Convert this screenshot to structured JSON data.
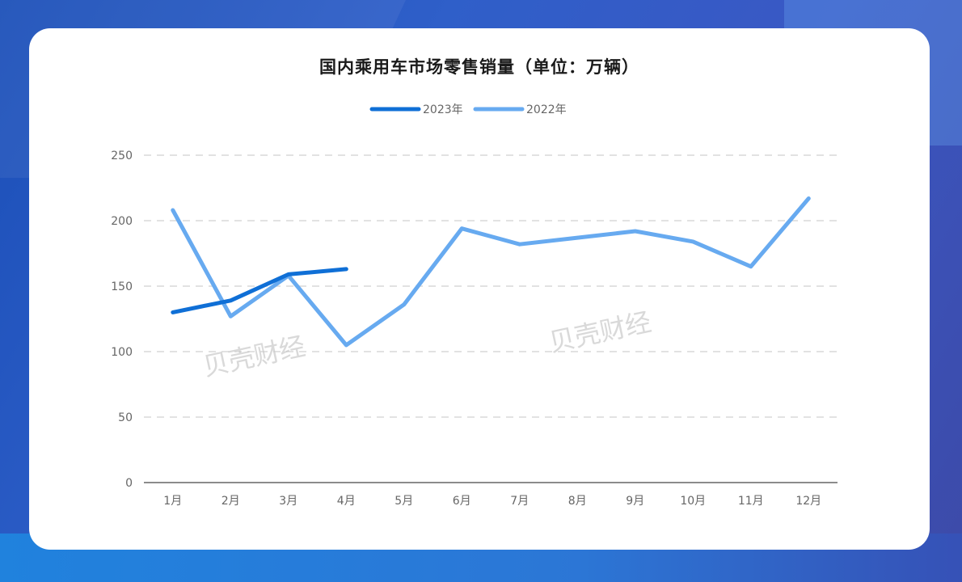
{
  "chart_data": {
    "type": "line",
    "title": "国内乘用车市场零售销量（单位：万辆）",
    "categories": [
      "1月",
      "2月",
      "3月",
      "4月",
      "5月",
      "6月",
      "7月",
      "8月",
      "9月",
      "10月",
      "11月",
      "12月"
    ],
    "series": [
      {
        "name": "2023年",
        "color": "#0f6fd6",
        "values": [
          130,
          139,
          159,
          163,
          null,
          null,
          null,
          null,
          null,
          null,
          null,
          null
        ]
      },
      {
        "name": "2022年",
        "color": "#67aaf0",
        "values": [
          208,
          127,
          158,
          105,
          136,
          194,
          182,
          187,
          192,
          184,
          165,
          217
        ]
      }
    ],
    "ylim": [
      0,
      250
    ],
    "yticks": [
      0,
      50,
      100,
      150,
      200,
      250
    ],
    "grid": true,
    "legend": "top-center"
  },
  "watermark": "贝壳财经"
}
